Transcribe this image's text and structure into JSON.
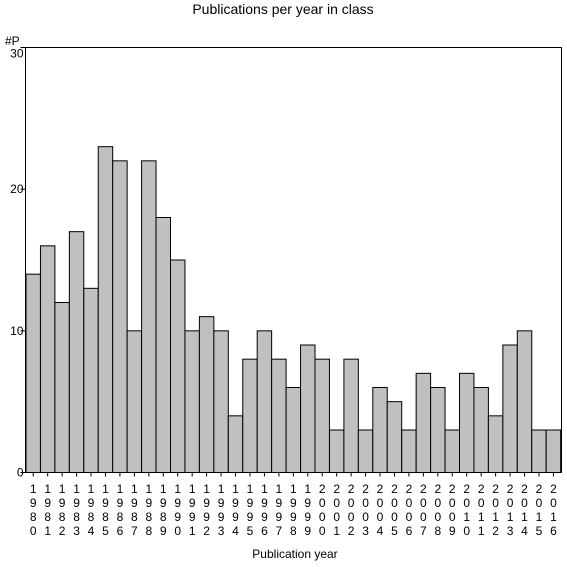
{
  "chart_data": {
    "type": "bar",
    "title": "Publications per year in class",
    "xlabel": "Publication year",
    "ylabel": "#P",
    "ylim": [
      0,
      30
    ],
    "yticks": [
      0,
      10,
      20,
      30
    ],
    "grid": false,
    "colors": {
      "bar_fill": "#c0c0c0",
      "bar_stroke": "#000000",
      "axis": "#000000",
      "background": "#ffffff"
    },
    "categories": [
      "1980",
      "1981",
      "1982",
      "1983",
      "1984",
      "1985",
      "1986",
      "1987",
      "1988",
      "1989",
      "1990",
      "1991",
      "1992",
      "1993",
      "1994",
      "1995",
      "1996",
      "1997",
      "1998",
      "1999",
      "2000",
      "2001",
      "2002",
      "2003",
      "2004",
      "2005",
      "2006",
      "2007",
      "2008",
      "2009",
      "2010",
      "2011",
      "2012",
      "2013",
      "2014",
      "2015",
      "2016"
    ],
    "values": [
      14,
      16,
      12,
      17,
      13,
      23,
      22,
      10,
      22,
      18,
      15,
      10,
      11,
      10,
      4,
      8,
      10,
      8,
      6,
      9,
      8,
      3,
      8,
      3,
      6,
      5,
      3,
      7,
      6,
      3,
      7,
      6,
      4,
      9,
      10,
      3,
      3
    ]
  }
}
